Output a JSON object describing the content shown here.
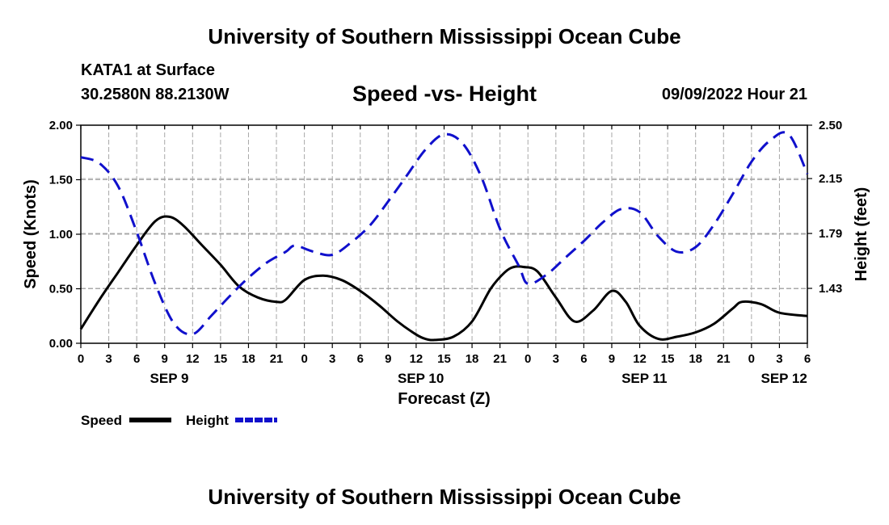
{
  "header": {
    "top_title": "University of Southern Mississippi Ocean Cube",
    "bottom_title": "University of Southern Mississippi Ocean Cube",
    "station": "KATA1 at Surface",
    "coordinates": "30.2580N  88.2130W",
    "datetime": "09/09/2022 Hour 21"
  },
  "chart_data": {
    "type": "line",
    "title": "Speed -vs- Height",
    "xlabel": "Forecast (Z)",
    "ylabel": "Speed (Knots)",
    "y2label": "Height (feet)",
    "x_unit": "hours since Sep 9 00Z",
    "xlim": [
      0,
      78
    ],
    "ylim": [
      0,
      2
    ],
    "y2lim": [
      1.07,
      2.5
    ],
    "grid": true,
    "legend_position": "bottom-left",
    "x_ticks": [
      {
        "x": 0,
        "label": "0"
      },
      {
        "x": 3,
        "label": "3"
      },
      {
        "x": 6,
        "label": "6"
      },
      {
        "x": 9,
        "label": "9"
      },
      {
        "x": 12,
        "label": "12"
      },
      {
        "x": 15,
        "label": "15"
      },
      {
        "x": 18,
        "label": "18"
      },
      {
        "x": 21,
        "label": "21"
      },
      {
        "x": 24,
        "label": "0"
      },
      {
        "x": 27,
        "label": "3"
      },
      {
        "x": 30,
        "label": "6"
      },
      {
        "x": 33,
        "label": "9"
      },
      {
        "x": 36,
        "label": "12"
      },
      {
        "x": 39,
        "label": "15"
      },
      {
        "x": 42,
        "label": "18"
      },
      {
        "x": 45,
        "label": "21"
      },
      {
        "x": 48,
        "label": "0"
      },
      {
        "x": 51,
        "label": "3"
      },
      {
        "x": 54,
        "label": "6"
      },
      {
        "x": 57,
        "label": "9"
      },
      {
        "x": 60,
        "label": "12"
      },
      {
        "x": 63,
        "label": "15"
      },
      {
        "x": 66,
        "label": "18"
      },
      {
        "x": 69,
        "label": "21"
      },
      {
        "x": 72,
        "label": "0"
      },
      {
        "x": 75,
        "label": "3"
      },
      {
        "x": 78,
        "label": "6"
      }
    ],
    "date_labels": [
      {
        "x": 9.5,
        "label": "SEP 9"
      },
      {
        "x": 36.5,
        "label": "SEP 10"
      },
      {
        "x": 60.5,
        "label": "SEP 11"
      },
      {
        "x": 75.5,
        "label": "SEP 12"
      }
    ],
    "y_ticks": [
      "0.00",
      "0.50",
      "1.00",
      "1.50",
      "2.00"
    ],
    "y_tick_values": [
      0,
      0.5,
      1,
      1.5,
      2
    ],
    "y2_ticks": [
      "1.43",
      "1.79",
      "2.15",
      "2.50"
    ],
    "y2_tick_values": [
      1.43,
      1.79,
      2.15,
      2.5
    ],
    "series": [
      {
        "name": "Speed",
        "axis": "left",
        "color": "#000000",
        "dash": "solid",
        "x": [
          0,
          2,
          4,
          6,
          8,
          9.5,
          11,
          13,
          15,
          17,
          19,
          21,
          22,
          24,
          26,
          28,
          30,
          32,
          34,
          36,
          37,
          38,
          40,
          42,
          44,
          45.5,
          46.5,
          47.5,
          49,
          51,
          53,
          55,
          57,
          58.5,
          60,
          62,
          64,
          66,
          68,
          70,
          71,
          73,
          75,
          78
        ],
        "values": [
          0.13,
          0.4,
          0.65,
          0.9,
          1.12,
          1.16,
          1.08,
          0.9,
          0.72,
          0.52,
          0.42,
          0.38,
          0.4,
          0.58,
          0.62,
          0.58,
          0.48,
          0.35,
          0.2,
          0.08,
          0.04,
          0.03,
          0.06,
          0.2,
          0.5,
          0.65,
          0.7,
          0.7,
          0.66,
          0.42,
          0.2,
          0.3,
          0.48,
          0.38,
          0.16,
          0.04,
          0.06,
          0.1,
          0.18,
          0.32,
          0.38,
          0.36,
          0.28,
          0.25
        ]
      },
      {
        "name": "Height",
        "axis": "right",
        "color": "#1010cc",
        "dash": "dashed",
        "x": [
          0,
          2,
          4,
          6,
          8,
          10,
          12,
          14,
          16,
          18,
          20,
          22,
          23,
          25,
          27,
          29,
          31,
          33,
          35,
          37,
          39,
          41,
          43,
          45,
          47,
          48,
          50,
          52,
          54,
          56,
          58,
          60,
          62,
          64,
          66,
          68,
          70,
          72,
          74,
          76,
          78
        ],
        "values": [
          2.29,
          2.25,
          2.1,
          1.8,
          1.46,
          1.2,
          1.13,
          1.25,
          1.38,
          1.5,
          1.6,
          1.67,
          1.71,
          1.67,
          1.65,
          1.73,
          1.84,
          2.0,
          2.17,
          2.34,
          2.44,
          2.38,
          2.16,
          1.82,
          1.58,
          1.46,
          1.52,
          1.63,
          1.74,
          1.86,
          1.95,
          1.93,
          1.77,
          1.67,
          1.7,
          1.85,
          2.05,
          2.26,
          2.4,
          2.44,
          2.18
        ]
      }
    ]
  }
}
